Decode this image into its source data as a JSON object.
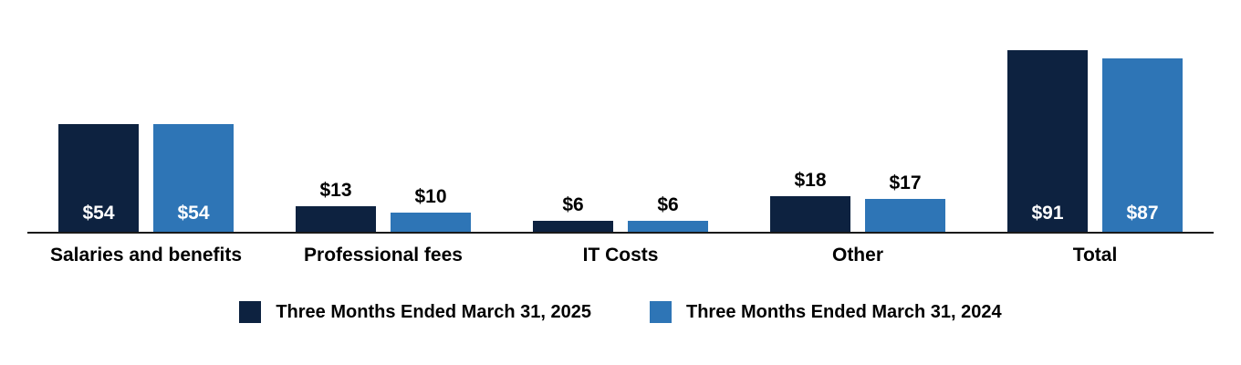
{
  "chart_data": {
    "type": "bar",
    "categories": [
      "Salaries and benefits",
      "Professional fees",
      "IT Costs",
      "Other",
      "Total"
    ],
    "series": [
      {
        "name": "Three Months Ended March 31, 2025",
        "color": "#0d2240",
        "values": [
          54,
          13,
          6,
          18,
          91
        ],
        "labels": [
          "$54",
          "$13",
          "$6",
          "$18",
          "$91"
        ]
      },
      {
        "name": "Three Months Ended March 31, 2024",
        "color": "#2e75b6",
        "values": [
          54,
          10,
          6,
          17,
          87
        ],
        "labels": [
          "$54",
          "$10",
          "$6",
          "$17",
          "$87"
        ]
      }
    ],
    "title": "",
    "xlabel": "",
    "ylabel": "",
    "ylim": [
      0,
      91
    ],
    "grid": false,
    "legend_position": "bottom",
    "value_labels": "inside-white-when-tall-else-above-black"
  },
  "colors": {
    "series_2025": "#0d2240",
    "series_2024": "#2e75b6",
    "axis_line": "#1a1a1a",
    "value_label_inside": "#ffffff",
    "value_label_outside": "#000000",
    "background": "#ffffff"
  }
}
